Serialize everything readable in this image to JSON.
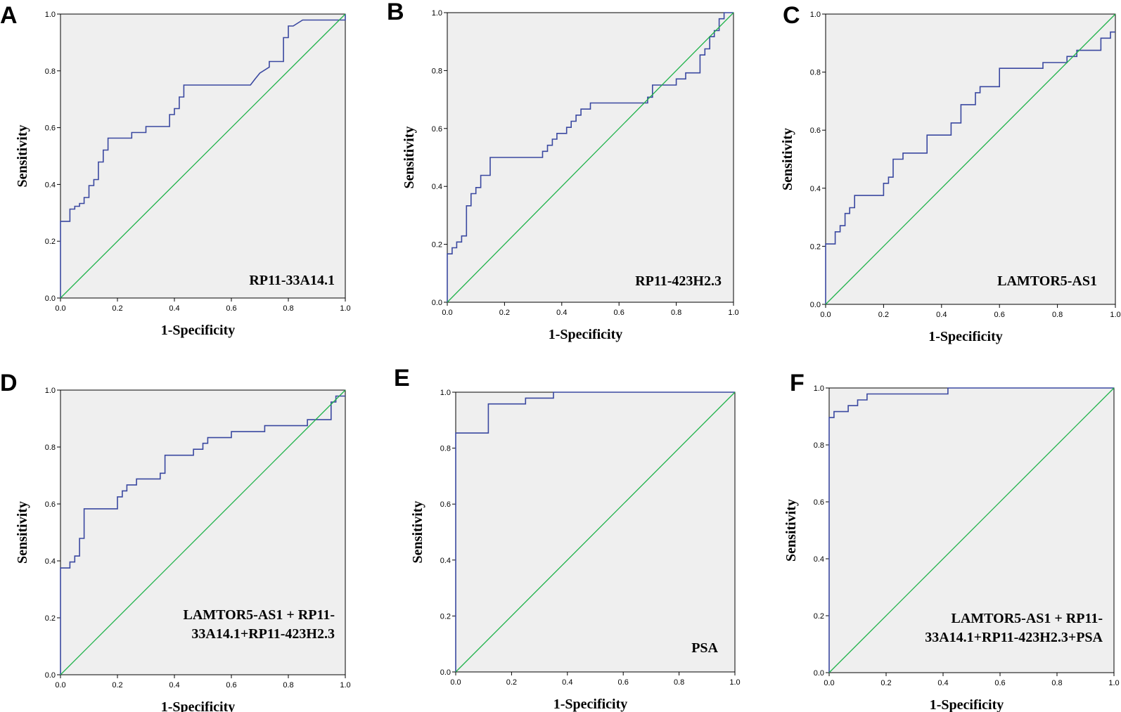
{
  "chart_data": [
    {
      "panel": "A",
      "type": "line",
      "annotation": [
        "RP11-33A14.1"
      ],
      "xlabel": "1-Specificity",
      "ylabel": "Sensitivity",
      "xlim": [
        0,
        1
      ],
      "ylim": [
        0,
        1
      ],
      "xticks": [
        "0.0",
        "0.2",
        "0.4",
        "0.6",
        "0.8",
        "1.0"
      ],
      "yticks": [
        "0.0",
        "0.2",
        "0.4",
        "0.6",
        "0.8",
        "1.0"
      ],
      "series": [
        {
          "name": "ROC",
          "x": [
            0,
            0,
            0.033,
            0.033,
            0.05,
            0.05,
            0.067,
            0.067,
            0.083,
            0.083,
            0.1,
            0.1,
            0.117,
            0.117,
            0.133,
            0.133,
            0.15,
            0.15,
            0.167,
            0.167,
            0.183,
            0.183,
            0.25,
            0.25,
            0.3,
            0.3,
            0.383,
            0.383,
            0.4,
            0.4,
            0.417,
            0.417,
            0.433,
            0.433,
            0.667,
            0.683,
            0.7,
            0.733,
            0.733,
            0.783,
            0.783,
            0.8,
            0.8,
            0.817,
            0.817,
            0.85,
            0.85,
            1.0,
            1.0
          ],
          "y": [
            0,
            0.27,
            0.27,
            0.313,
            0.313,
            0.323,
            0.323,
            0.333,
            0.333,
            0.354,
            0.354,
            0.396,
            0.396,
            0.417,
            0.417,
            0.479,
            0.479,
            0.521,
            0.521,
            0.563,
            0.563,
            0.563,
            0.563,
            0.583,
            0.583,
            0.604,
            0.604,
            0.646,
            0.646,
            0.667,
            0.667,
            0.708,
            0.708,
            0.75,
            0.75,
            0.771,
            0.792,
            0.813,
            0.833,
            0.833,
            0.917,
            0.917,
            0.958,
            0.958,
            0.958,
            0.979,
            0.979,
            0.979,
            1.0
          ]
        },
        {
          "name": "Reference",
          "x": [
            0,
            1
          ],
          "y": [
            0,
            1
          ]
        }
      ]
    },
    {
      "panel": "B",
      "type": "line",
      "annotation": [
        "RP11-423H2.3"
      ],
      "xlabel": "1-Specificity",
      "ylabel": "Sensitivity",
      "xlim": [
        0,
        1
      ],
      "ylim": [
        0,
        1
      ],
      "xticks": [
        "0.0",
        "0.2",
        "0.4",
        "0.6",
        "0.8",
        "1.0"
      ],
      "yticks": [
        "0.0",
        "0.2",
        "0.4",
        "0.6",
        "0.8",
        "1.0"
      ],
      "series": [
        {
          "name": "ROC",
          "x": [
            0,
            0,
            0.017,
            0.017,
            0.033,
            0.033,
            0.05,
            0.05,
            0.067,
            0.067,
            0.083,
            0.083,
            0.1,
            0.1,
            0.117,
            0.117,
            0.15,
            0.15,
            0.333,
            0.333,
            0.35,
            0.35,
            0.367,
            0.367,
            0.383,
            0.383,
            0.417,
            0.417,
            0.433,
            0.433,
            0.45,
            0.45,
            0.467,
            0.467,
            0.5,
            0.5,
            0.7,
            0.7,
            0.717,
            0.717,
            0.8,
            0.8,
            0.833,
            0.833,
            0.883,
            0.883,
            0.9,
            0.9,
            0.917,
            0.917,
            0.933,
            0.933,
            0.95,
            0.95,
            0.967,
            0.967,
            1.0
          ],
          "y": [
            0,
            0.167,
            0.167,
            0.188,
            0.188,
            0.208,
            0.208,
            0.229,
            0.229,
            0.333,
            0.333,
            0.375,
            0.375,
            0.396,
            0.396,
            0.438,
            0.438,
            0.5,
            0.5,
            0.521,
            0.521,
            0.542,
            0.542,
            0.563,
            0.563,
            0.583,
            0.583,
            0.604,
            0.604,
            0.625,
            0.625,
            0.646,
            0.646,
            0.667,
            0.667,
            0.688,
            0.688,
            0.708,
            0.708,
            0.75,
            0.75,
            0.771,
            0.771,
            0.792,
            0.792,
            0.854,
            0.854,
            0.875,
            0.875,
            0.917,
            0.917,
            0.938,
            0.938,
            0.979,
            0.979,
            1.0,
            1.0
          ]
        },
        {
          "name": "Reference",
          "x": [
            0,
            1
          ],
          "y": [
            0,
            1
          ]
        }
      ]
    },
    {
      "panel": "C",
      "type": "line",
      "annotation": [
        "LAMTOR5-AS1"
      ],
      "xlabel": "1-Specificity",
      "ylabel": "Sensitivity",
      "xlim": [
        0,
        1
      ],
      "ylim": [
        0,
        1
      ],
      "xticks": [
        "0.0",
        "0.2",
        "0.4",
        "0.6",
        "0.8",
        "1.0"
      ],
      "yticks": [
        "0.0",
        "0.2",
        "0.4",
        "0.6",
        "0.8",
        "1.0"
      ],
      "series": [
        {
          "name": "ROC",
          "x": [
            0,
            0,
            0.033,
            0.033,
            0.05,
            0.05,
            0.067,
            0.067,
            0.083,
            0.083,
            0.1,
            0.1,
            0.2,
            0.2,
            0.217,
            0.217,
            0.233,
            0.233,
            0.267,
            0.267,
            0.35,
            0.35,
            0.433,
            0.433,
            0.467,
            0.467,
            0.517,
            0.517,
            0.533,
            0.533,
            0.6,
            0.6,
            0.75,
            0.75,
            0.833,
            0.833,
            0.867,
            0.867,
            0.95,
            0.95,
            0.983,
            0.983,
            1.0
          ],
          "y": [
            0,
            0.208,
            0.208,
            0.25,
            0.25,
            0.271,
            0.271,
            0.313,
            0.313,
            0.333,
            0.333,
            0.375,
            0.375,
            0.417,
            0.417,
            0.438,
            0.438,
            0.5,
            0.5,
            0.521,
            0.521,
            0.583,
            0.583,
            0.625,
            0.625,
            0.688,
            0.688,
            0.729,
            0.729,
            0.75,
            0.75,
            0.813,
            0.813,
            0.833,
            0.833,
            0.854,
            0.854,
            0.875,
            0.875,
            0.917,
            0.917,
            0.938,
            0.938
          ]
        },
        {
          "name": "Reference",
          "x": [
            0,
            1
          ],
          "y": [
            0,
            1
          ]
        }
      ]
    },
    {
      "panel": "D",
      "type": "line",
      "annotation": [
        "LAMTOR5-AS1 + RP11-",
        "33A14.1+RP11-423H2.3"
      ],
      "xlabel": "1-Specificity",
      "ylabel": "Sensitivity",
      "xlim": [
        0,
        1
      ],
      "ylim": [
        0,
        1
      ],
      "xticks": [
        "0.0",
        "0.2",
        "0.4",
        "0.6",
        "0.8",
        "1.0"
      ],
      "yticks": [
        "0.0",
        "0.2",
        "0.4",
        "0.6",
        "0.8",
        "1.0"
      ],
      "series": [
        {
          "name": "ROC",
          "x": [
            0,
            0,
            0.033,
            0.033,
            0.05,
            0.05,
            0.067,
            0.067,
            0.083,
            0.083,
            0.2,
            0.2,
            0.217,
            0.217,
            0.233,
            0.233,
            0.267,
            0.267,
            0.35,
            0.35,
            0.367,
            0.367,
            0.467,
            0.467,
            0.5,
            0.5,
            0.517,
            0.517,
            0.6,
            0.6,
            0.717,
            0.717,
            0.867,
            0.867,
            0.95,
            0.95,
            0.967,
            0.967,
            1.0
          ],
          "y": [
            0,
            0.375,
            0.375,
            0.396,
            0.396,
            0.417,
            0.417,
            0.479,
            0.479,
            0.583,
            0.583,
            0.625,
            0.625,
            0.646,
            0.646,
            0.667,
            0.667,
            0.688,
            0.688,
            0.708,
            0.708,
            0.771,
            0.771,
            0.792,
            0.792,
            0.813,
            0.813,
            0.833,
            0.833,
            0.854,
            0.854,
            0.875,
            0.875,
            0.896,
            0.896,
            0.958,
            0.958,
            0.979,
            0.979
          ]
        },
        {
          "name": "Reference",
          "x": [
            0,
            1
          ],
          "y": [
            0,
            1
          ]
        }
      ]
    },
    {
      "panel": "E",
      "type": "line",
      "annotation": [
        "PSA"
      ],
      "xlabel": "1-Specificity",
      "ylabel": "Sensitivity",
      "xlim": [
        0,
        1
      ],
      "ylim": [
        0,
        1
      ],
      "xticks": [
        "0.0",
        "0.2",
        "0.4",
        "0.6",
        "0.8",
        "1.0"
      ],
      "yticks": [
        "0.0",
        "0.2",
        "0.4",
        "0.6",
        "0.8",
        "1.0"
      ],
      "series": [
        {
          "name": "ROC",
          "x": [
            0,
            0,
            0.117,
            0.117,
            0.25,
            0.25,
            0.35,
            0.35,
            1.0
          ],
          "y": [
            0,
            0.854,
            0.854,
            0.958,
            0.958,
            0.979,
            0.979,
            1.0,
            1.0
          ]
        },
        {
          "name": "Reference",
          "x": [
            0,
            1
          ],
          "y": [
            0,
            1
          ]
        }
      ]
    },
    {
      "panel": "F",
      "type": "line",
      "annotation": [
        "LAMTOR5-AS1  + RP11-",
        "33A14.1+RP11-423H2.3+PSA"
      ],
      "xlabel": "1-Specificity",
      "ylabel": "Sensitivity",
      "xlim": [
        0,
        1
      ],
      "ylim": [
        0,
        1
      ],
      "xticks": [
        "0.0",
        "0.2",
        "0.4",
        "0.6",
        "0.8",
        "1.0"
      ],
      "yticks": [
        "0.0",
        "0.2",
        "0.4",
        "0.6",
        "0.8",
        "1.0"
      ],
      "series": [
        {
          "name": "ROC",
          "x": [
            0,
            0,
            0.017,
            0.017,
            0.067,
            0.067,
            0.1,
            0.1,
            0.133,
            0.133,
            0.167,
            0.167,
            0.417,
            0.417,
            1.0
          ],
          "y": [
            0,
            0.896,
            0.896,
            0.917,
            0.917,
            0.938,
            0.938,
            0.958,
            0.958,
            0.979,
            0.979,
            0.979,
            0.979,
            1.0,
            1.0
          ]
        },
        {
          "name": "Reference",
          "x": [
            0,
            1
          ],
          "y": [
            0,
            1
          ]
        }
      ]
    }
  ]
}
